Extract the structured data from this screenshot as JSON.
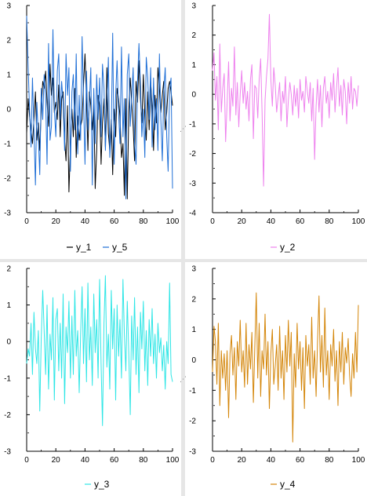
{
  "chart_data": [
    {
      "type": "line",
      "xlim": [
        0,
        100
      ],
      "ylim": [
        -3,
        3
      ],
      "xticks": [
        "0",
        "20",
        "40",
        "60",
        "80",
        "100"
      ],
      "yticks": [
        "-3",
        "-2",
        "-1",
        "0",
        "1",
        "2",
        "3"
      ],
      "legend_position": "bottom",
      "colors": {
        "y_1": "#000000",
        "y_5": "#1f6fd6"
      },
      "series": [
        {
          "name": "y_1",
          "color": "#000000",
          "values": [
            -0.7,
            0.3,
            -0.2,
            -0.6,
            -1.0,
            -0.3,
            0.5,
            -0.9,
            -0.4,
            -1.2,
            0.0,
            0.8,
            0.6,
            1.1,
            0.2,
            -0.5,
            1.3,
            0.4,
            0.9,
            -0.1,
            0.2,
            -0.3,
            0.7,
            -0.8,
            0.3,
            0.5,
            -0.9,
            -1.5,
            0.1,
            -2.4,
            -1.1,
            0.0,
            -0.8,
            0.6,
            -1.4,
            -0.2,
            -0.9,
            -0.5,
            -0.3,
            0.7,
            1.6,
            0.3,
            -1.2,
            0.5,
            0.1,
            -0.6,
            0.2,
            -2.3,
            -1.2,
            0.4,
            0.1,
            -1.6,
            -0.4,
            0.3,
            -1.1,
            1.2,
            -0.7,
            -1.2,
            -0.3,
            -1.9,
            0.0,
            -0.8,
            0.6,
            0.3,
            -0.2,
            -1.4,
            -1.0,
            -2.5,
            0.3,
            -2.6,
            -0.1,
            0.9,
            0.2,
            -0.5,
            -1.5,
            0.8,
            0.2,
            1.4,
            0.3,
            -0.4,
            1.0,
            -0.2,
            -0.9,
            0.5,
            -0.6,
            0.8,
            0.1,
            -1.2,
            0.4,
            -0.4,
            1.2,
            0.6,
            -0.1,
            0.4,
            0.8,
            -0.6,
            -0.1,
            0.6,
            0.8,
            0.5,
            0.1
          ]
        },
        {
          "name": "y_5",
          "color": "#1f6fd6",
          "values": [
            2.7,
            1.2,
            0.0,
            -1.1,
            0.9,
            -0.6,
            -2.2,
            0.2,
            -0.8,
            -1.9,
            0.6,
            -0.3,
            1.0,
            0.3,
            -1.6,
            1.9,
            -0.9,
            -0.5,
            2.3,
            0.0,
            -0.8,
            1.1,
            1.6,
            -0.3,
            0.8,
            0.2,
            -1.2,
            1.6,
            0.4,
            1.2,
            -1.8,
            0.5,
            1.0,
            -0.6,
            1.6,
            -1.3,
            0.4,
            -0.9,
            2.1,
            0.3,
            -1.6,
            1.1,
            -0.6,
            0.2,
            1.2,
            -2.2,
            0.6,
            -1.0,
            1.0,
            -0.3,
            0.9,
            -0.8,
            1.3,
            0.6,
            -1.2,
            0.0,
            1.5,
            -1.4,
            -0.6,
            2.2,
            -1.6,
            0.4,
            1.4,
            -0.1,
            -1.0,
            1.8,
            -0.8,
            0.3,
            -2.6,
            1.0,
            1.6,
            -0.5,
            0.3,
            1.2,
            -1.0,
            -1.6,
            0.8,
            1.9,
            0.7,
            -0.8,
            0.0,
            -1.4,
            1.5,
            0.9,
            -0.3,
            1.2,
            -1.1,
            0.9,
            -0.6,
            0.3,
            -1.2,
            1.6,
            -0.3,
            -1.5,
            0.5,
            1.2,
            -0.8,
            -1.8,
            0.6,
            0.9,
            -2.3
          ]
        }
      ]
    },
    {
      "type": "line",
      "xlim": [
        0,
        100
      ],
      "ylim": [
        -4,
        3
      ],
      "xticks": [
        "0",
        "20",
        "40",
        "60",
        "80",
        "100"
      ],
      "yticks": [
        "-4",
        "-3",
        "-2",
        "-1",
        "0",
        "1",
        "2",
        "3"
      ],
      "legend_position": "bottom",
      "colors": {
        "y_2": "#ee82ee"
      },
      "series": [
        {
          "name": "y_2",
          "color": "#ee82ee",
          "values": [
            0.8,
            1.4,
            -0.2,
            0.6,
            -1.2,
            1.7,
            -0.6,
            0.2,
            0.7,
            -1.6,
            -0.3,
            1.1,
            -0.9,
            0.2,
            -0.4,
            1.6,
            -0.7,
            0.4,
            -1.1,
            0.0,
            0.8,
            -0.3,
            0.4,
            -0.5,
            0.1,
            -0.9,
            0.5,
            1.0,
            -1.5,
            0.3,
            0.2,
            -0.8,
            0.5,
            1.2,
            -0.6,
            -3.1,
            -0.2,
            0.6,
            1.2,
            2.7,
            0.5,
            -0.4,
            0.9,
            0.3,
            -0.6,
            -0.1,
            0.4,
            -0.9,
            0.1,
            -0.3,
            0.6,
            -1.1,
            -0.2,
            0.4,
            0.0,
            -0.7,
            0.3,
            -0.4,
            0.2,
            -0.8,
            0.5,
            -0.2,
            0.1,
            -0.6,
            0.6,
            0.1,
            -0.3,
            0.4,
            -0.9,
            0.2,
            -2.2,
            -0.4,
            0.5,
            -0.6,
            0.3,
            -1.1,
            0.2,
            0.6,
            -0.3,
            0.1,
            -0.8,
            0.4,
            -0.2,
            0.7,
            -0.6,
            0.2,
            0.9,
            -0.4,
            0.3,
            -0.7,
            0.5,
            0.1,
            -1.0,
            0.4,
            -0.3,
            0.6,
            -0.5,
            0.2,
            0.1,
            -0.4,
            0.3
          ]
        }
      ]
    },
    {
      "type": "line",
      "xlim": [
        0,
        100
      ],
      "ylim": [
        -3,
        2
      ],
      "xticks": [
        "0",
        "20",
        "40",
        "60",
        "80",
        "100"
      ],
      "yticks": [
        "-3",
        "-2",
        "-1",
        "0",
        "1",
        "2"
      ],
      "legend_position": "bottom",
      "colors": {
        "y_3": "#2fe6e6"
      },
      "series": [
        {
          "name": "y_3",
          "color": "#2fe6e6",
          "values": [
            -0.6,
            -0.2,
            -0.4,
            0.5,
            -0.9,
            0.8,
            -0.2,
            -0.6,
            0.3,
            -1.9,
            0.1,
            1.4,
            0.3,
            -0.9,
            1.0,
            -1.3,
            0.2,
            -0.5,
            1.2,
            -1.6,
            0.6,
            0.9,
            -0.8,
            0.5,
            -1.0,
            1.3,
            -1.7,
            0.4,
            -0.3,
            1.1,
            -1.0,
            0.7,
            -0.9,
            1.4,
            -0.4,
            0.3,
            -1.4,
            0.2,
            1.5,
            -0.6,
            0.9,
            -1.1,
            1.6,
            -0.5,
            0.4,
            -1.2,
            1.3,
            -0.3,
            0.6,
            -1.0,
            1.7,
            -0.6,
            -2.3,
            0.5,
            1.8,
            -0.7,
            0.2,
            -1.3,
            1.4,
            -0.2,
            0.9,
            -1.6,
            1.0,
            -0.4,
            0.6,
            -1.0,
            1.7,
            0.2,
            -0.8,
            1.1,
            -0.3,
            -2.0,
            0.7,
            -0.5,
            1.2,
            -0.9,
            0.4,
            -1.4,
            0.8,
            -0.2,
            1.1,
            -0.8,
            0.3,
            -1.2,
            0.6,
            -0.4,
            0.9,
            -0.6,
            0.2,
            -1.0,
            0.5,
            -0.3,
            0.1,
            -0.8,
            -0.1,
            -1.3,
            0.0,
            -0.6,
            1.6,
            -0.9,
            -1.1
          ]
        }
      ]
    },
    {
      "type": "line",
      "xlim": [
        0,
        100
      ],
      "ylim": [
        -3,
        3
      ],
      "xticks": [
        "0",
        "20",
        "40",
        "60",
        "80",
        "100"
      ],
      "yticks": [
        "-3",
        "-2",
        "-1",
        "0",
        "1",
        "2",
        "3"
      ],
      "legend_position": "bottom",
      "colors": {
        "y_4": "#d4860a"
      },
      "series": [
        {
          "name": "y_4",
          "color": "#d4860a",
          "values": [
            -0.4,
            1.1,
            0.6,
            -0.8,
            1.2,
            -1.5,
            0.3,
            -0.6,
            0.2,
            -1.0,
            0.3,
            -1.9,
            0.2,
            0.8,
            -0.5,
            0.4,
            -1.3,
            0.6,
            -0.2,
            1.3,
            -0.4,
            0.3,
            -0.9,
            1.2,
            -0.8,
            0.5,
            -0.3,
            0.9,
            -1.4,
            0.4,
            2.2,
            -0.6,
            1.2,
            -1.2,
            0.3,
            -0.3,
            1.5,
            -0.5,
            0.6,
            -1.6,
            0.2,
            1.0,
            -0.8,
            -0.2,
            0.5,
            -1.0,
            1.1,
            -0.6,
            0.3,
            -1.3,
            0.8,
            -0.4,
            1.3,
            -0.2,
            0.9,
            -2.7,
            0.2,
            -0.9,
            1.2,
            -0.3,
            0.6,
            -1.0,
            0.4,
            -1.6,
            0.8,
            -0.2,
            0.5,
            -0.8,
            1.4,
            -0.6,
            0.3,
            -1.2,
            0.6,
            2.1,
            -0.4,
            0.8,
            -0.9,
            1.7,
            -0.5,
            0.3,
            -1.3,
            0.5,
            -0.2,
            1.0,
            -0.7,
            0.3,
            -1.5,
            0.6,
            -0.4,
            0.9,
            -0.8,
            0.4,
            -0.1,
            0.7,
            -0.5,
            -1.2,
            0.2,
            -0.6,
            0.9,
            -0.4,
            1.8
          ]
        }
      ]
    }
  ]
}
